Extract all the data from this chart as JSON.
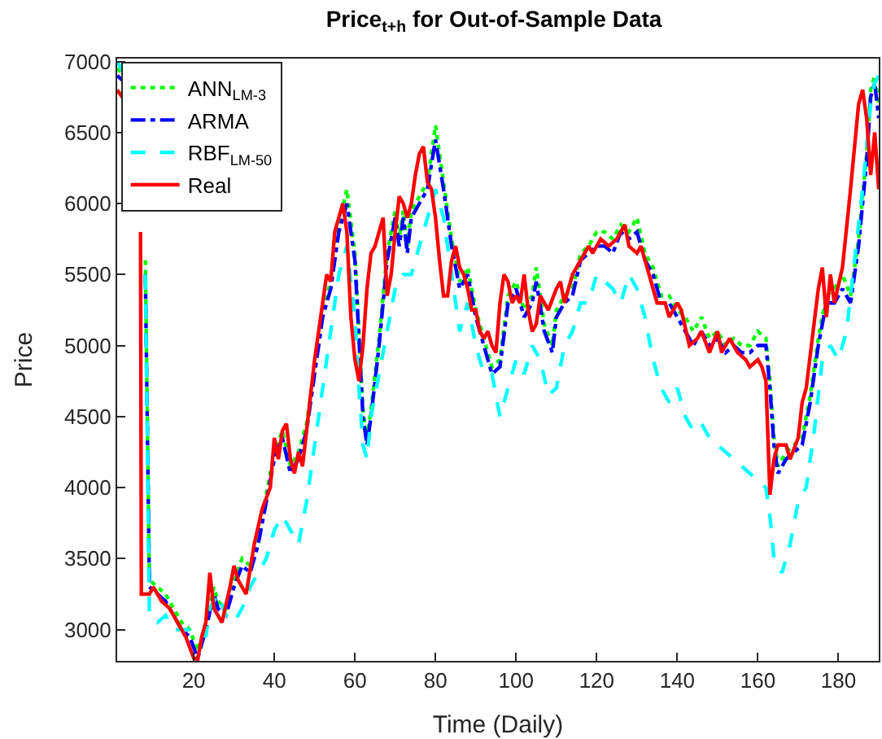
{
  "chart_data": {
    "type": "line",
    "title": "Price$_{t+h}$ for Out-of-Sample Data",
    "xlabel": "Time (Daily)",
    "ylabel": "Price",
    "xlim": [
      1,
      190
    ],
    "xticks": [
      20,
      40,
      60,
      80,
      100,
      120,
      140,
      160,
      180
    ],
    "ylim": [
      2780,
      7020
    ],
    "yticks": [
      3000,
      3500,
      4000,
      4500,
      5000,
      5500,
      6000,
      6500,
      7000
    ],
    "legend": "top left",
    "marker": "none",
    "series": [
      {
        "name": "ANN$_{LM-3}$",
        "color": "#00ff00",
        "line_style": "dotted",
        "x": [
          1,
          3,
          5,
          7,
          8,
          9,
          11,
          13,
          15,
          17,
          19,
          21,
          23,
          25,
          26,
          28,
          30,
          32,
          34,
          36,
          38,
          40,
          42,
          44,
          46,
          48,
          50,
          52,
          54,
          56,
          58,
          60,
          62,
          63,
          64,
          66,
          67,
          68,
          70,
          71,
          72,
          73,
          74,
          76,
          78,
          80,
          82,
          84,
          86,
          88,
          90,
          92,
          94,
          96,
          98,
          100,
          102,
          104,
          105,
          107,
          109,
          110,
          112,
          114,
          116,
          118,
          120,
          122,
          124,
          126,
          128,
          130,
          132,
          134,
          136,
          138,
          140,
          142,
          144,
          146,
          148,
          150,
          152,
          154,
          156,
          158,
          160,
          162,
          163,
          164,
          165,
          167,
          169,
          171,
          173,
          175,
          177,
          179,
          181,
          183,
          185,
          187,
          188,
          189,
          190
        ],
        "values": [
          6950,
          6900,
          null,
          null,
          5600,
          3350,
          3300,
          3250,
          3150,
          3050,
          3000,
          2850,
          3050,
          3300,
          3200,
          3150,
          3350,
          3500,
          3450,
          3650,
          3950,
          4250,
          4400,
          4150,
          4250,
          4450,
          4850,
          5250,
          5450,
          5850,
          6100,
          5650,
          4550,
          4350,
          4550,
          5050,
          5350,
          5650,
          5950,
          5750,
          5950,
          5700,
          5950,
          6050,
          6150,
          6550,
          6150,
          5750,
          5450,
          5550,
          5250,
          5050,
          4850,
          4900,
          5350,
          5450,
          5250,
          5350,
          5550,
          5150,
          5000,
          5250,
          5350,
          5400,
          5650,
          5700,
          5800,
          5800,
          5750,
          5850,
          5800,
          5900,
          5650,
          5550,
          5350,
          5350,
          5250,
          5200,
          5100,
          5200,
          5050,
          5100,
          5000,
          5050,
          5000,
          5000,
          5100,
          5050,
          4750,
          4350,
          4150,
          4250,
          4300,
          4350,
          4650,
          5050,
          5350,
          5400,
          5500,
          5350,
          5750,
          6350,
          6800,
          6900,
          6700
        ]
      },
      {
        "name": "ARMA",
        "color": "#0000ff",
        "line_style": "dashdot",
        "x": [
          1,
          3,
          5,
          7,
          8,
          9,
          11,
          13,
          15,
          17,
          19,
          21,
          23,
          25,
          26,
          28,
          30,
          32,
          34,
          36,
          38,
          40,
          42,
          44,
          46,
          48,
          50,
          52,
          54,
          56,
          58,
          60,
          62,
          63,
          64,
          66,
          67,
          68,
          70,
          71,
          72,
          73,
          74,
          76,
          78,
          80,
          82,
          84,
          86,
          88,
          90,
          92,
          94,
          96,
          98,
          100,
          102,
          104,
          105,
          107,
          109,
          110,
          112,
          114,
          116,
          118,
          120,
          122,
          124,
          126,
          128,
          130,
          132,
          134,
          136,
          138,
          140,
          142,
          144,
          146,
          148,
          150,
          152,
          154,
          156,
          158,
          160,
          162,
          163,
          164,
          165,
          167,
          169,
          171,
          173,
          175,
          177,
          179,
          181,
          183,
          185,
          187,
          188,
          189,
          190
        ],
        "values": [
          6900,
          6850,
          null,
          null,
          5500,
          3300,
          3250,
          3200,
          3100,
          3000,
          2950,
          2800,
          3000,
          3250,
          3150,
          3100,
          3300,
          3450,
          3400,
          3600,
          3900,
          4200,
          4350,
          4100,
          4200,
          4400,
          4800,
          5200,
          5400,
          5800,
          6000,
          5600,
          4500,
          4300,
          4500,
          5000,
          5300,
          5600,
          5900,
          5700,
          5900,
          5650,
          5900,
          6000,
          6100,
          6450,
          6100,
          5700,
          5400,
          5500,
          5200,
          5000,
          4800,
          4850,
          5300,
          5400,
          5200,
          5300,
          5450,
          5100,
          4950,
          5200,
          5300,
          5350,
          5600,
          5650,
          5700,
          5700,
          5650,
          5800,
          5750,
          5800,
          5600,
          5500,
          5300,
          5300,
          5200,
          5100,
          5000,
          5100,
          5000,
          5050,
          4950,
          5000,
          4950,
          4950,
          5000,
          5000,
          4700,
          4300,
          4100,
          4200,
          4250,
          4300,
          4600,
          5000,
          5300,
          5300,
          5400,
          5300,
          5700,
          6300,
          6750,
          6850,
          6600
        ]
      },
      {
        "name": "RBF$_{LM-50}$",
        "color": "#00ffff",
        "line_style": "dashed",
        "x": [
          1,
          3,
          5,
          7,
          8,
          9,
          11,
          13,
          15,
          17,
          19,
          21,
          23,
          24,
          26,
          28,
          30,
          32,
          34,
          36,
          38,
          40,
          42,
          44,
          46,
          48,
          50,
          52,
          54,
          56,
          58,
          60,
          61,
          62,
          63,
          64,
          66,
          68,
          70,
          72,
          74,
          76,
          78,
          80,
          82,
          84,
          86,
          88,
          90,
          92,
          94,
          96,
          98,
          100,
          102,
          104,
          106,
          108,
          110,
          112,
          114,
          116,
          118,
          120,
          122,
          124,
          126,
          128,
          130,
          132,
          134,
          136,
          138,
          140,
          142,
          144,
          146,
          148,
          150,
          152,
          154,
          156,
          158,
          160,
          162,
          163,
          164,
          166,
          168,
          170,
          172,
          174,
          176,
          178,
          180,
          182,
          184,
          186,
          188,
          189,
          190
        ],
        "values": [
          7000,
          6900,
          null,
          null,
          5500,
          3100,
          3050,
          3100,
          3000,
          3000,
          3000,
          3000,
          2950,
          3150,
          3250,
          3100,
          3050,
          3150,
          3300,
          3400,
          3500,
          3700,
          3800,
          3700,
          3600,
          3900,
          4300,
          4700,
          5100,
          5500,
          5700,
          5200,
          4700,
          4300,
          4200,
          4500,
          4800,
          5100,
          5400,
          5500,
          5500,
          5700,
          5900,
          6100,
          5900,
          5500,
          5100,
          5300,
          5000,
          4800,
          4800,
          4500,
          4700,
          4900,
          4800,
          5000,
          4900,
          4650,
          4700,
          5000,
          5100,
          5300,
          5300,
          5500,
          5450,
          5400,
          5300,
          5500,
          5400,
          5200,
          4900,
          4700,
          4600,
          4700,
          4500,
          4400,
          4450,
          4350,
          4300,
          4250,
          4200,
          4150,
          4100,
          4050,
          4000,
          3800,
          3500,
          3400,
          3600,
          3900,
          4000,
          4400,
          4900,
          5000,
          4900,
          5100,
          5600,
          6100,
          6700,
          6850,
          6900
        ]
      },
      {
        "name": "Real",
        "color": "#ff0000",
        "line_style": "solid",
        "x": [
          1,
          3,
          5,
          6,
          6.8,
          7,
          9,
          10,
          12,
          14,
          16,
          18,
          20,
          21,
          22,
          23,
          24,
          25,
          27,
          29,
          30,
          31,
          33,
          35,
          37,
          39,
          40,
          41,
          42,
          43,
          44,
          45,
          46,
          47,
          48,
          50,
          52,
          53,
          54,
          55,
          57,
          58,
          59,
          60,
          61,
          62,
          63,
          64,
          65,
          66,
          67,
          68,
          69,
          70,
          71,
          72,
          73,
          74,
          75,
          76,
          77,
          78,
          79,
          80,
          81,
          82,
          83,
          84,
          85,
          86,
          87,
          88,
          89,
          90,
          91,
          92,
          93,
          94,
          95,
          96,
          97,
          98,
          99,
          100,
          101,
          102,
          103,
          104,
          105,
          106,
          107,
          108,
          110,
          111,
          112,
          114,
          116,
          118,
          119,
          121,
          123,
          125,
          127,
          128,
          130,
          131,
          133,
          135,
          137,
          138,
          140,
          141,
          143,
          145,
          146,
          148,
          150,
          151,
          153,
          155,
          157,
          158,
          160,
          161,
          162,
          163,
          164,
          165,
          167,
          168,
          170,
          171,
          172,
          175,
          176,
          177,
          178,
          179,
          181,
          183,
          185,
          186,
          187,
          188,
          189,
          190
        ],
        "values": [
          6800,
          6720,
          null,
          null,
          5800,
          3250,
          3250,
          3300,
          3200,
          3150,
          3050,
          2950,
          2800,
          2790,
          2950,
          3050,
          3400,
          3150,
          3050,
          3300,
          3450,
          3350,
          3250,
          3600,
          3850,
          4000,
          4350,
          4200,
          4400,
          4450,
          4200,
          4100,
          4250,
          4150,
          4400,
          4900,
          5300,
          5500,
          5450,
          5800,
          6000,
          5800,
          5200,
          4900,
          4750,
          5000,
          5400,
          5650,
          5700,
          5800,
          5900,
          5350,
          5500,
          5800,
          6050,
          6000,
          5900,
          6000,
          6200,
          6350,
          6400,
          6150,
          6100,
          5900,
          5600,
          5350,
          5350,
          5600,
          5700,
          5550,
          5500,
          5400,
          5250,
          5250,
          5100,
          5050,
          5100,
          5000,
          4950,
          5300,
          5500,
          5450,
          5300,
          5350,
          5300,
          5500,
          5250,
          5100,
          5150,
          5350,
          5300,
          5250,
          5400,
          5450,
          5300,
          5500,
          5600,
          5700,
          5650,
          5750,
          5700,
          5750,
          5850,
          5700,
          5650,
          5700,
          5500,
          5300,
          5300,
          5200,
          5300,
          5250,
          5000,
          5050,
          5100,
          4950,
          5100,
          4950,
          5050,
          4950,
          4900,
          4850,
          4900,
          4850,
          4750,
          3950,
          4200,
          4300,
          4300,
          4200,
          4350,
          4600,
          4700,
          5400,
          5550,
          5200,
          5500,
          5300,
          5550,
          6100,
          6700,
          6800,
          6600,
          6200,
          6500,
          6100
        ]
      }
    ]
  }
}
